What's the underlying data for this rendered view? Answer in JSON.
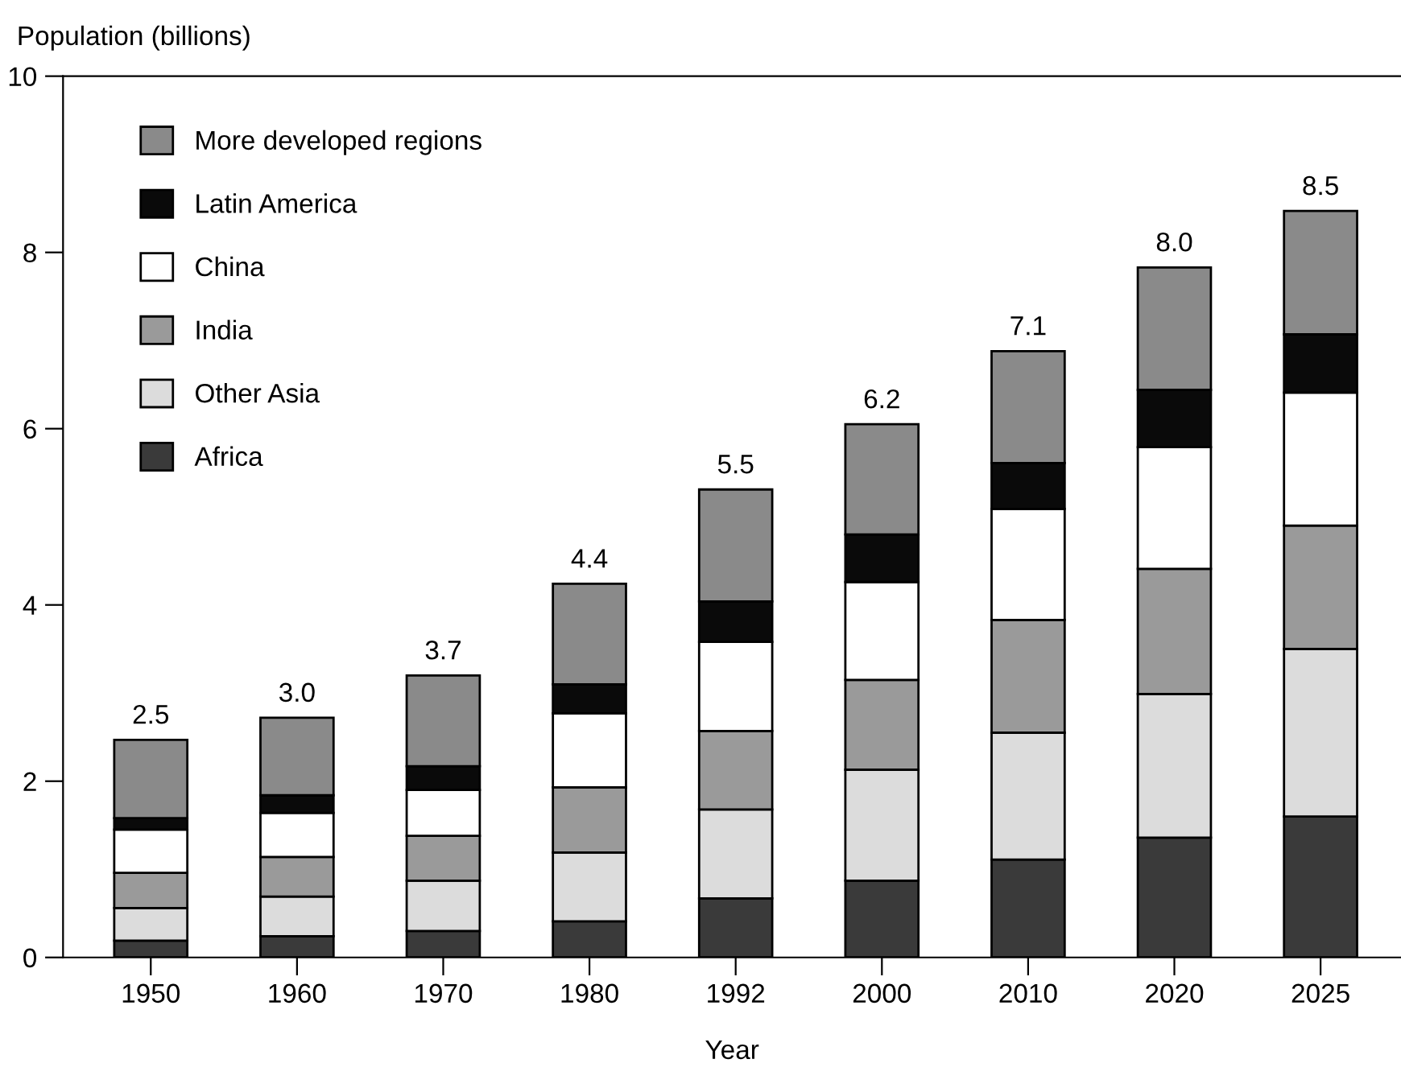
{
  "chart_data": {
    "type": "bar",
    "stacked": true,
    "ylabel": "Population (billions)",
    "xlabel": "Year",
    "categories": [
      "1950",
      "1960",
      "1970",
      "1980",
      "1992",
      "2000",
      "2010",
      "2020",
      "2025"
    ],
    "series": [
      {
        "name": "Africa",
        "color": "#3a3a3a",
        "values": [
          0.19,
          0.24,
          0.3,
          0.41,
          0.67,
          0.87,
          1.11,
          1.36,
          1.6
        ]
      },
      {
        "name": "Other Asia",
        "color": "#dcdcdc",
        "values": [
          0.37,
          0.45,
          0.57,
          0.78,
          1.01,
          1.26,
          1.44,
          1.63,
          1.9
        ]
      },
      {
        "name": "India",
        "color": "#9a9a9a",
        "values": [
          0.4,
          0.45,
          0.51,
          0.74,
          0.89,
          1.02,
          1.28,
          1.42,
          1.4
        ]
      },
      {
        "name": "China",
        "color": "#ffffff",
        "values": [
          0.49,
          0.5,
          0.52,
          0.84,
          1.01,
          1.11,
          1.26,
          1.38,
          1.51
        ]
      },
      {
        "name": "Latin America",
        "color": "#0a0a0a",
        "values": [
          0.13,
          0.2,
          0.27,
          0.33,
          0.46,
          0.54,
          0.52,
          0.65,
          0.66
        ]
      },
      {
        "name": "More developed regions",
        "color": "#8a8a8a",
        "values": [
          0.89,
          0.88,
          1.03,
          1.14,
          1.27,
          1.25,
          1.27,
          1.39,
          1.4
        ]
      }
    ],
    "annotations": [
      {
        "text": "2.5",
        "x": "1950",
        "y": 2.47
      },
      {
        "text": "3.0",
        "x": "1960",
        "y": 2.72
      },
      {
        "text": "3.7",
        "x": "1970",
        "y": 3.2
      },
      {
        "text": "4.4",
        "x": "1980",
        "y": 4.24
      },
      {
        "text": "5.5",
        "x": "1992",
        "y": 5.31
      },
      {
        "text": "6.2",
        "x": "2000",
        "y": 6.05
      },
      {
        "text": "7.1",
        "x": "2010",
        "y": 6.88
      },
      {
        "text": "8.0",
        "x": "2020",
        "y": 7.83
      },
      {
        "text": "8.5",
        "x": "2025",
        "y": 8.47
      }
    ],
    "ylim": [
      0,
      10
    ],
    "yticks": [
      0,
      2,
      4,
      6,
      8,
      10
    ],
    "grid": false,
    "legend": "top left"
  }
}
